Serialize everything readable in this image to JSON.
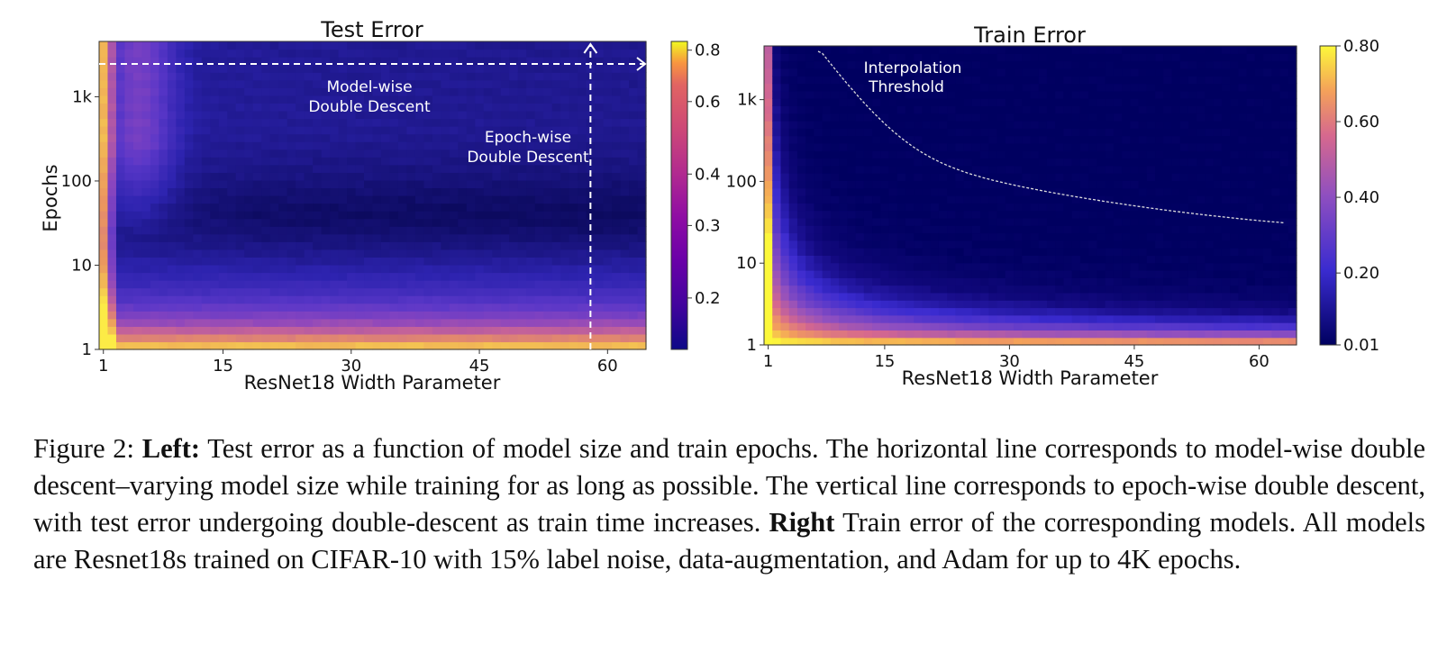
{
  "chart_data": [
    {
      "type": "heatmap",
      "title": "Test Error",
      "xlabel": "ResNet18 Width Parameter",
      "ylabel": "Epochs",
      "x_range": [
        1,
        64
      ],
      "y_range": [
        1,
        4000
      ],
      "y_scale": "log",
      "x_ticks": [
        "1",
        "15",
        "30",
        "45",
        "60"
      ],
      "y_ticks": [
        "1",
        "10",
        "100",
        "1k"
      ],
      "colorbar": {
        "min": 0.15,
        "max": 0.84,
        "ticks": [
          "0.2",
          "0.3",
          "0.4",
          "0.6",
          "0.8"
        ]
      },
      "colormap": "plasma",
      "annotations": [
        {
          "line1": "Model-wise",
          "line2": "Double Descent",
          "arrow": "horizontal",
          "at_epochs": 4000
        },
        {
          "line1": "Epoch-wise",
          "line2": "Double Descent",
          "arrow": "vertical",
          "at_width": 58
        }
      ]
    },
    {
      "type": "heatmap",
      "title": "Train Error",
      "xlabel": "ResNet18 Width Parameter",
      "ylabel": "",
      "x_range": [
        1,
        64
      ],
      "y_range": [
        1,
        4000
      ],
      "y_scale": "log",
      "x_ticks": [
        "1",
        "15",
        "30",
        "45",
        "60"
      ],
      "y_ticks": [
        "1",
        "10",
        "100",
        "1k"
      ],
      "colorbar": {
        "min": 0.01,
        "max": 0.8,
        "ticks": [
          "0.01",
          "0.20",
          "0.40",
          "0.60",
          "0.80"
        ]
      },
      "colormap": "plasma",
      "annotations": [
        {
          "line1": "Interpolation",
          "line2": "Threshold",
          "curve": "dashed"
        }
      ]
    }
  ],
  "caption": {
    "fig_label": "Figure 2:",
    "left_label": "Left:",
    "left_text": " Test error as a function of model size and train epochs. The horizontal line corresponds to model-wise double descent–varying model size while training for as long as possible. The vertical line corresponds to epoch-wise double descent, with test error undergoing double-descent as train time increases. ",
    "right_label": "Right",
    "right_text": " Train error of the corresponding models. All models are Resnet18s trained on CIFAR-10 with 15% label noise, data-augmentation, and Adam for up to 4K epochs."
  }
}
